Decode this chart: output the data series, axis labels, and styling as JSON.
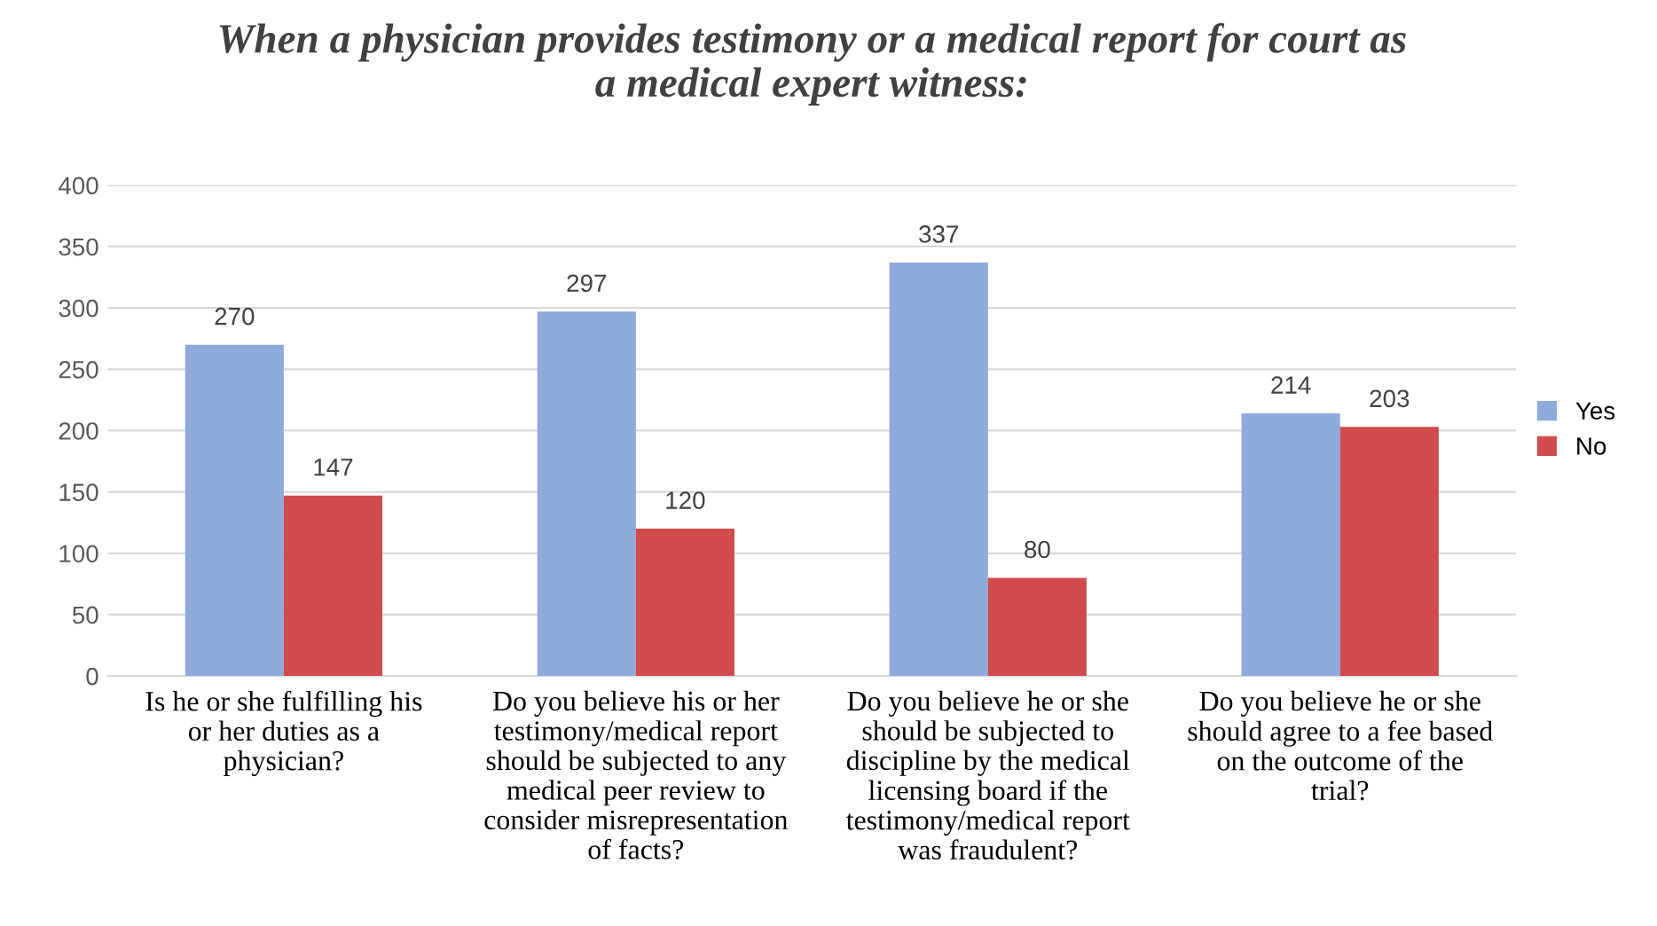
{
  "chart_data": {
    "type": "bar",
    "title": "When a physician provides testimony or a medical report for court as\na medical expert witness:",
    "categories": [
      "Is he or she fulfilling his\nor her duties as a\nphysician?",
      "Do you believe his or her\ntestimony/medical report\nshould be subjected to any\nmedical peer review to\nconsider misrepresentation\nof facts?",
      "Do you believe he or she\nshould be subjected to\ndiscipline by the medical\nlicensing board if the\ntestimony/medical report\nwas fraudulent?",
      "Do you believe he or she\nshould agree to a fee based\non the outcome of the\ntrial?"
    ],
    "series": [
      {
        "name": "Yes",
        "color": "#8eaadb",
        "values": [
          270,
          297,
          337,
          214
        ]
      },
      {
        "name": "No",
        "color": "#d04b4b",
        "values": [
          147,
          120,
          80,
          203
        ]
      }
    ],
    "ylim": [
      0,
      400
    ],
    "yticks": [
      0,
      50,
      100,
      150,
      200,
      250,
      300,
      350,
      400
    ],
    "grid": "y",
    "legend": "right",
    "data_labels": true
  }
}
